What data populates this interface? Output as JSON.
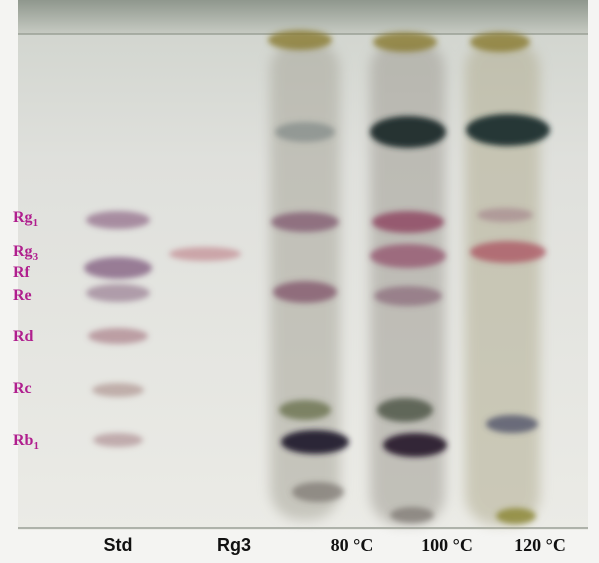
{
  "band_labels": [
    {
      "base": "Rg",
      "sub": "1"
    },
    {
      "base": "Rg",
      "sub": "3"
    },
    {
      "base": "Rf"
    },
    {
      "base": "Re"
    },
    {
      "base": "Rd"
    },
    {
      "base": "Rc"
    },
    {
      "base": "Rb",
      "sub": "1"
    }
  ],
  "lane_labels": [
    "Std",
    "Rg3",
    "80 °C",
    "100 °C",
    "120 °C"
  ]
}
